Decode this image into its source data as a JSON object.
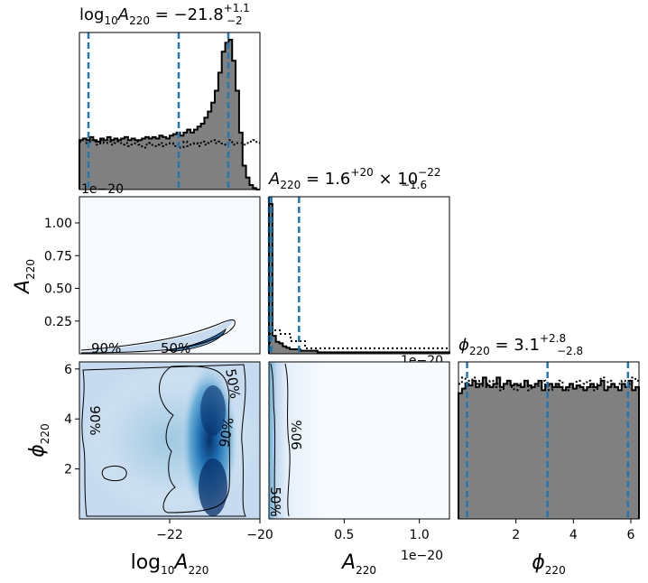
{
  "chart_data": {
    "type": "corner",
    "parameters": [
      {
        "symbol_main": "log",
        "symbol_sub_base": "10",
        "symbol_letter": "A",
        "symbol_sub": "220",
        "range": [
          -24.0,
          -20.0
        ]
      },
      {
        "symbol_letter": "A",
        "symbol_sub": "220",
        "range": [
          0,
          1.2e-20
        ],
        "axis_offset": "1e−20"
      },
      {
        "symbol_letter": "ϕ",
        "symbol_sub": "220",
        "range": [
          0,
          6.283
        ]
      }
    ],
    "titles": {
      "logA": {
        "lhs_main": "log",
        "lhs_sub1": "10",
        "lhs_letter": "A",
        "lhs_sub2": "220",
        "value": " = −21.8",
        "sup": "+1.1",
        "sub": "−2"
      },
      "A": {
        "lhs_letter": "A",
        "lhs_sub": "220",
        "value": " = 1.6",
        "sup": "+20",
        "sub": "−1.6",
        "suffix": " × 10",
        "suffix_sup": "−22"
      },
      "phi": {
        "lhs_letter": "ϕ",
        "lhs_sub": "220",
        "value": " = 3.1",
        "sup": "+2.8",
        "sub": "−2.8"
      }
    },
    "quantiles": {
      "logA": [
        -23.8,
        -21.8,
        -20.7
      ],
      "A": [
        0.0,
        1.6e-22,
        2e-21
      ],
      "phi": [
        0.3,
        3.1,
        5.9
      ]
    },
    "ticks": {
      "logA_x": [
        "−22",
        "−20"
      ],
      "A_x": [
        "0.5",
        "1.0"
      ],
      "A_y": [
        "0.25",
        "0.50",
        "0.75",
        "1.00"
      ],
      "phi": [
        "2",
        "4",
        "6"
      ],
      "offset_A_top": "1e−20",
      "offset_A_bottom": "1e−20",
      "offset_A_hist": "1e−20"
    },
    "contour_labels": {
      "A_vs_logA": [
        "90%",
        "50%"
      ],
      "phi_vs_logA": [
        "90%",
        "50%",
        "90%"
      ],
      "phi_vs_A": [
        "90%",
        "50%"
      ]
    },
    "hist_logA": {
      "bins": [
        -24.0,
        -20.0
      ],
      "values": [
        0.33,
        0.34,
        0.33,
        0.35,
        0.33,
        0.32,
        0.34,
        0.33,
        0.35,
        0.33,
        0.34,
        0.33,
        0.34,
        0.35,
        0.33,
        0.34,
        0.33,
        0.33,
        0.34,
        0.35,
        0.34,
        0.35,
        0.34,
        0.36,
        0.35,
        0.34,
        0.36,
        0.37,
        0.38,
        0.36,
        0.38,
        0.4,
        0.38,
        0.4,
        0.42,
        0.44,
        0.48,
        0.52,
        0.58,
        0.66,
        0.78,
        0.92,
        0.98,
        1.0,
        0.86,
        0.66,
        0.38,
        0.16,
        0.08,
        0.03,
        0.01,
        0.0
      ]
    },
    "hist_logA_prior": {
      "values": [
        0.32,
        0.34,
        0.31,
        0.33,
        0.32,
        0.3,
        0.33,
        0.31,
        0.32,
        0.3,
        0.31,
        0.32,
        0.3,
        0.31,
        0.29,
        0.3,
        0.32,
        0.3,
        0.28,
        0.3,
        0.31,
        0.29,
        0.3,
        0.31,
        0.29,
        0.3,
        0.31,
        0.29,
        0.3,
        0.28,
        0.32,
        0.29,
        0.3,
        0.31,
        0.29,
        0.32,
        0.3,
        0.31,
        0.33,
        0.31,
        0.32,
        0.3,
        0.31,
        0.33,
        0.3,
        0.31,
        0.31,
        0.3,
        0.31,
        0.32,
        0.33,
        0.31
      ]
    },
    "hist_A": {
      "bins": [
        0,
        1.2e-20
      ],
      "values": [
        1.0,
        0.12,
        0.08,
        0.07,
        0.05,
        0.04,
        0.03,
        0.03,
        0.03,
        0.02,
        0.02,
        0.02,
        0.02,
        0.02,
        0.01,
        0.01,
        0.01,
        0.01,
        0.01,
        0.01,
        0.01,
        0.01,
        0.01,
        0.01,
        0.01,
        0.01,
        0.01,
        0.01,
        0.01,
        0.01,
        0.01,
        0.01,
        0.01,
        0.01,
        0.01,
        0.01,
        0.01,
        0.01,
        0.01,
        0.01,
        0.01,
        0.01,
        0.01,
        0.01,
        0.01,
        0.01,
        0.01,
        0.01,
        0.01,
        0.01,
        0.01,
        0.01
      ]
    },
    "hist_phi": {
      "bins": [
        0,
        6.283
      ],
      "values": [
        0.8,
        0.83,
        0.86,
        0.85,
        0.88,
        0.84,
        0.86,
        0.9,
        0.85,
        0.84,
        0.86,
        0.9,
        0.84,
        0.86,
        0.88,
        0.85,
        0.86,
        0.85,
        0.84,
        0.88,
        0.85,
        0.84,
        0.86,
        0.88,
        0.82,
        0.85,
        0.86,
        0.84,
        0.86,
        0.84,
        0.82,
        0.84,
        0.86,
        0.83,
        0.85,
        0.84,
        0.82,
        0.84,
        0.86,
        0.84,
        0.85,
        0.88,
        0.82,
        0.84,
        0.86,
        0.84,
        0.82,
        0.86,
        0.84,
        0.88,
        0.82,
        0.84
      ]
    },
    "hist_phi_prior": {
      "values": [
        0.86,
        0.9,
        0.84,
        0.88,
        0.9,
        0.86,
        0.88,
        0.84,
        0.86,
        0.88,
        0.84,
        0.86,
        0.82,
        0.86,
        0.88,
        0.84,
        0.82,
        0.86,
        0.84,
        0.88,
        0.82,
        0.84,
        0.86,
        0.84,
        0.88,
        0.84,
        0.82,
        0.86,
        0.84,
        0.88,
        0.84,
        0.82,
        0.86,
        0.84,
        0.88,
        0.84,
        0.86,
        0.88,
        0.84,
        0.82,
        0.86,
        0.9,
        0.84,
        0.88,
        0.86,
        0.84,
        0.86,
        0.88,
        0.84,
        0.86,
        0.9,
        0.88
      ]
    },
    "colors": {
      "hist_fill": "#808080",
      "edge": "#000000",
      "quantile_line": "#1f77b4",
      "density_dark": "#08306b",
      "density_light": "#f7fbff"
    }
  }
}
